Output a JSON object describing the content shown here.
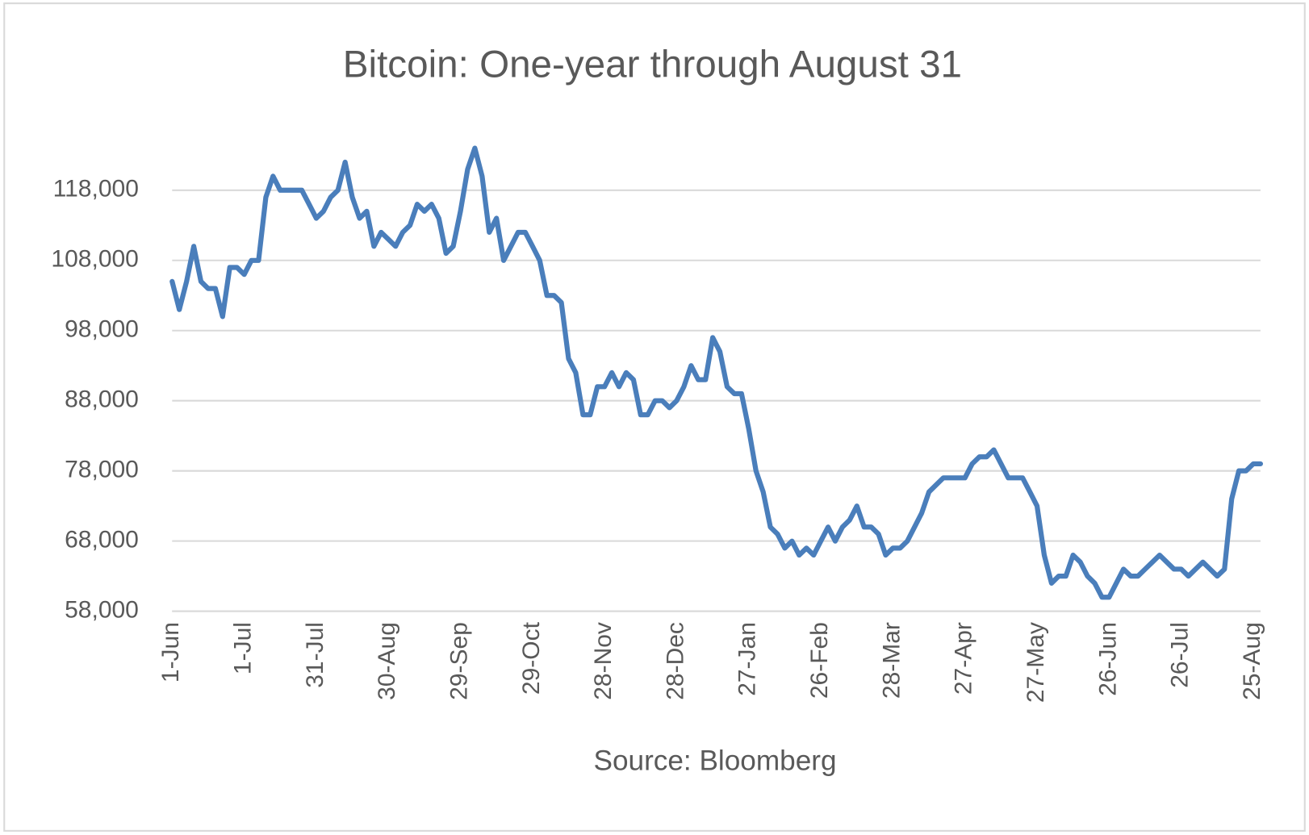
{
  "chart_data": {
    "type": "line",
    "title": "Bitcoin: One-year through August 31",
    "xlabel": "Source: Bloomberg",
    "categories": [
      "1-Jun",
      null,
      null,
      null,
      null,
      null,
      null,
      null,
      null,
      null,
      "1-Jul",
      null,
      null,
      null,
      null,
      null,
      null,
      null,
      null,
      null,
      "31-Jul",
      null,
      null,
      null,
      null,
      null,
      null,
      null,
      null,
      null,
      "30-Aug",
      null,
      null,
      null,
      null,
      null,
      null,
      null,
      null,
      null,
      "29-Sep",
      null,
      null,
      null,
      null,
      null,
      null,
      null,
      null,
      null,
      "29-Oct",
      null,
      null,
      null,
      null,
      null,
      null,
      null,
      null,
      null,
      "28-Nov",
      null,
      null,
      null,
      null,
      null,
      null,
      null,
      null,
      null,
      "28-Dec",
      null,
      null,
      null,
      null,
      null,
      null,
      null,
      null,
      null,
      "27-Jan",
      null,
      null,
      null,
      null,
      null,
      null,
      null,
      null,
      null,
      "26-Feb",
      null,
      null,
      null,
      null,
      null,
      null,
      null,
      null,
      null,
      "28-Mar",
      null,
      null,
      null,
      null,
      null,
      null,
      null,
      null,
      null,
      "27-Apr",
      null,
      null,
      null,
      null,
      null,
      null,
      null,
      null,
      null,
      "27-May",
      null,
      null,
      null,
      null,
      null,
      null,
      null,
      null,
      null,
      "26-Jun",
      null,
      null,
      null,
      null,
      null,
      null,
      null,
      null,
      null,
      "26-Jul",
      null,
      null,
      null,
      null,
      null,
      null,
      null,
      null,
      null,
      "25-Aug",
      null
    ],
    "series": [
      {
        "name": "Bitcoin",
        "color": "#4a7ebb",
        "values": [
          105000,
          101000,
          105000,
          110000,
          105000,
          104000,
          104000,
          100000,
          107000,
          107000,
          106000,
          108000,
          108000,
          117000,
          120000,
          118000,
          118000,
          118000,
          118000,
          116000,
          114000,
          115000,
          117000,
          118000,
          122000,
          117000,
          114000,
          115000,
          110000,
          112000,
          111000,
          110000,
          112000,
          113000,
          116000,
          115000,
          116000,
          114000,
          109000,
          110000,
          115000,
          121000,
          124000,
          120000,
          112000,
          114000,
          108000,
          110000,
          112000,
          112000,
          110000,
          108000,
          103000,
          103000,
          102000,
          94000,
          92000,
          86000,
          86000,
          90000,
          90000,
          92000,
          90000,
          92000,
          91000,
          86000,
          86000,
          88000,
          88000,
          87000,
          88000,
          90000,
          93000,
          91000,
          91000,
          97000,
          95000,
          90000,
          89000,
          89000,
          84000,
          78000,
          75000,
          70000,
          69000,
          67000,
          68000,
          66000,
          67000,
          66000,
          68000,
          70000,
          68000,
          70000,
          71000,
          73000,
          70000,
          70000,
          69000,
          66000,
          67000,
          67000,
          68000,
          70000,
          72000,
          75000,
          76000,
          77000,
          77000,
          77000,
          77000,
          79000,
          80000,
          80000,
          81000,
          79000,
          77000,
          77000,
          77000,
          75000,
          73000,
          66000,
          62000,
          63000,
          63000,
          66000,
          65000,
          63000,
          62000,
          60000,
          60000,
          62000,
          64000,
          63000,
          63000,
          64000,
          65000,
          66000,
          65000,
          64000,
          64000,
          63000,
          64000,
          65000,
          64000,
          63000,
          64000,
          74000,
          78000,
          78000,
          79000,
          79000
        ]
      }
    ],
    "ylim": [
      58000,
      125000
    ],
    "yticks": [
      {
        "value": 58000,
        "label": "58,000"
      },
      {
        "value": 68000,
        "label": "68,000"
      },
      {
        "value": 78000,
        "label": "78,000"
      },
      {
        "value": 88000,
        "label": "88,000"
      },
      {
        "value": 98000,
        "label": "98,000"
      },
      {
        "value": 108000,
        "label": "108,000"
      },
      {
        "value": 118000,
        "label": "118,000"
      }
    ],
    "grid": true
  }
}
